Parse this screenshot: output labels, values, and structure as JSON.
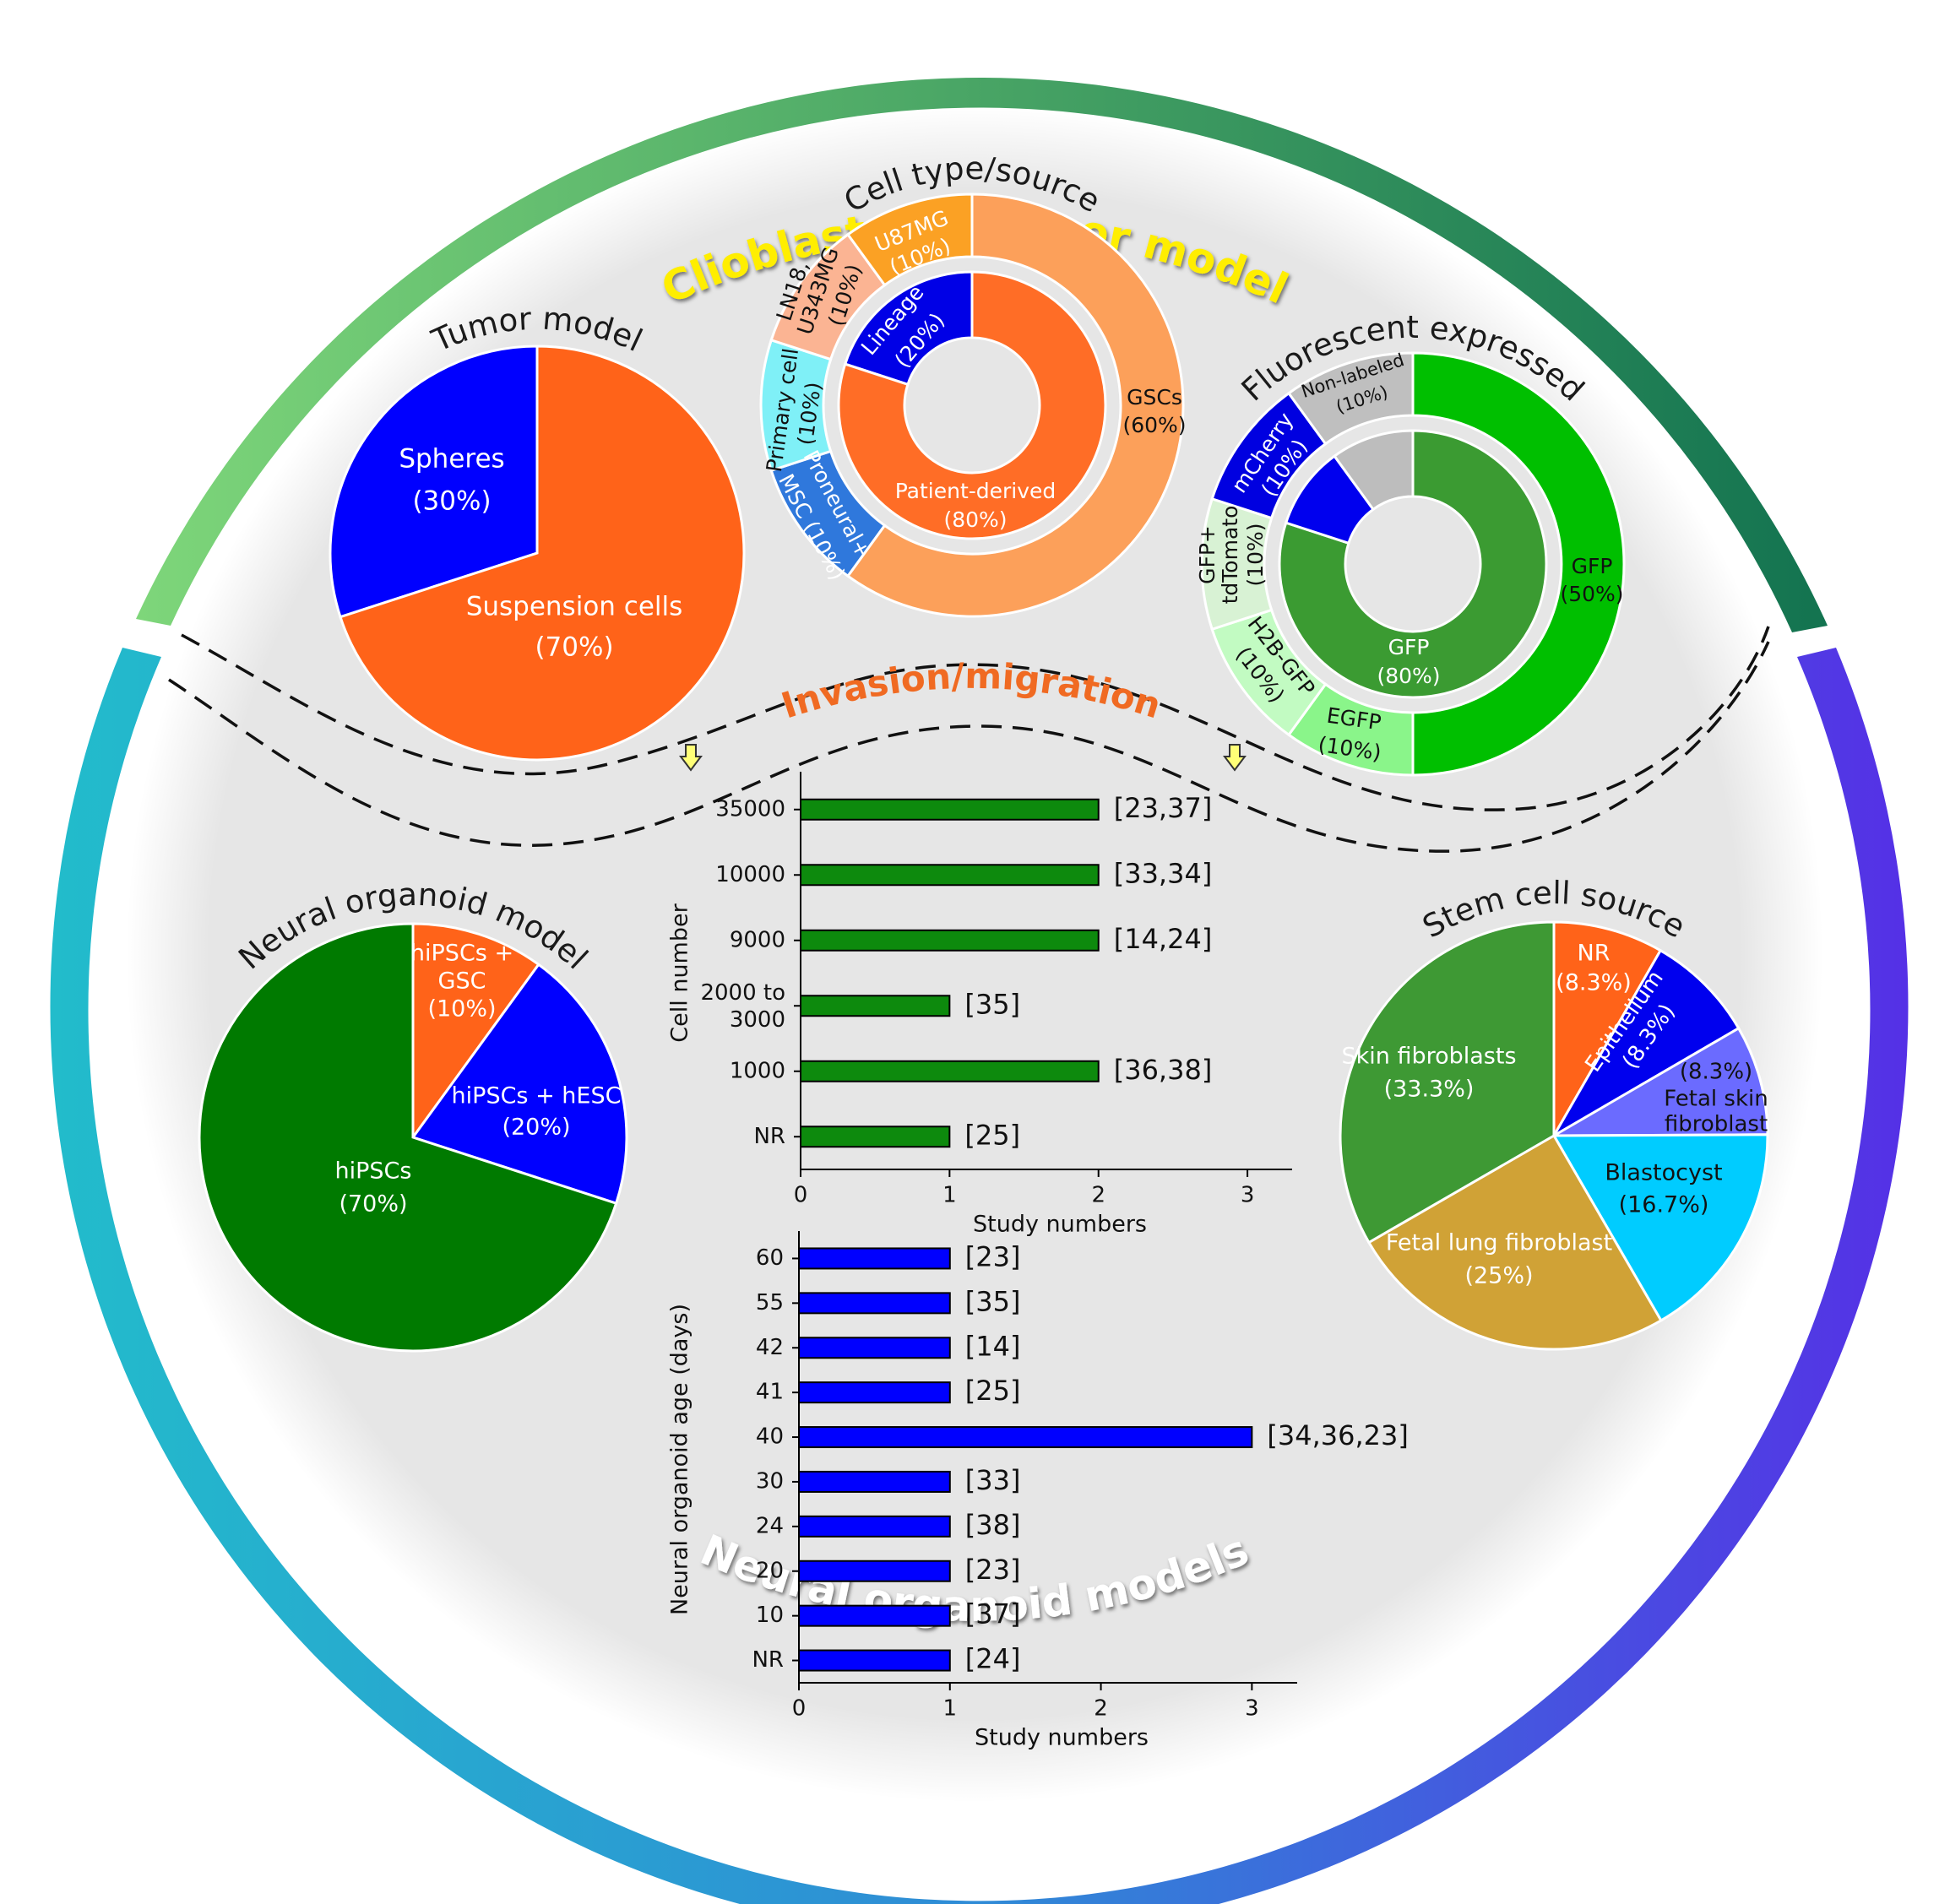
{
  "ring": {
    "top_title": "Clioblastoma tumor model",
    "bottom_title": "Neural organoid models",
    "middle_title": "Invasion/migration",
    "colors": {
      "top_start": "#7ed67a",
      "top_end": "#137350",
      "left": "#22bccb",
      "right": "#5530e6",
      "bottom_mid": "#2f8bd6",
      "top_text": "#ffee00",
      "mid_text": "#f06a22"
    }
  },
  "chart_data": [
    {
      "type": "pie",
      "title": "Tumor model",
      "slices": [
        {
          "label": "Spheres",
          "pct": "(30%)",
          "value": 30,
          "color": "#0000ff"
        },
        {
          "label": "Suspension cells",
          "pct": "(70%)",
          "value": 70,
          "color": "#ff6319"
        }
      ]
    },
    {
      "type": "pie",
      "subtype": "nested-donut",
      "title": "Cell type/source",
      "inner": [
        {
          "label": "Lineage",
          "pct": "(20%)",
          "value": 20,
          "color": "#0000e6"
        },
        {
          "label": "Patient-derived",
          "pct": "(80%)",
          "value": 80,
          "color": "#ff6d26"
        }
      ],
      "outer": [
        {
          "label": "U87MG",
          "pct": "(10%)",
          "value": 10,
          "color": "#2f78dc"
        },
        {
          "label": "LN18, U343MG",
          "pct": "(10%)",
          "value": 10,
          "color": "#7ff0f7"
        },
        {
          "label": "Primary cell",
          "pct": "(10%)",
          "value": 10,
          "color": "#fbb493"
        },
        {
          "label": "Proneural+ MSC",
          "pct": "(10%)",
          "value": 10,
          "color": "#fba124"
        },
        {
          "label": "GSCs",
          "pct": "(60%)",
          "value": 60,
          "color": "#fca05a"
        }
      ]
    },
    {
      "type": "pie",
      "subtype": "nested-donut",
      "title": "Fluorescent expressed",
      "inner": [
        {
          "label": "GFP",
          "pct": "(80%)",
          "value": 80,
          "color": "#3b9b32"
        },
        {
          "label": "",
          "pct": "",
          "value": 10,
          "color": "#0000ee"
        },
        {
          "label": "",
          "pct": "",
          "value": 10,
          "color": "#bdbdbd"
        }
      ],
      "outer": [
        {
          "label": "GFP",
          "pct": "(50%)",
          "value": 50,
          "color": "#00bf00"
        },
        {
          "label": "EGFP",
          "pct": "(10%)",
          "value": 10,
          "color": "#8af58a"
        },
        {
          "label": "H2B-GFP",
          "pct": "(10%)",
          "value": 10,
          "color": "#c2fbc2"
        },
        {
          "label": "GFP+ tdTomato",
          "pct": "(10%)",
          "value": 10,
          "color": "#d8f2d4"
        },
        {
          "label": "mCherry",
          "pct": "(10%)",
          "value": 10,
          "color": "#0000e0"
        },
        {
          "label": "Non-labeled",
          "pct": "(10%)",
          "value": 10,
          "color": "#bfbfbf"
        }
      ]
    },
    {
      "type": "pie",
      "title": "Neural organoid model",
      "slices": [
        {
          "label": "hiPSCs + GSC",
          "pct": "(10%)",
          "value": 10,
          "color": "#ff6319"
        },
        {
          "label": "hiPSCs + hESC",
          "pct": "(20%)",
          "value": 20,
          "color": "#0000ff"
        },
        {
          "label": "hiPSCs",
          "pct": "(70%)",
          "value": 70,
          "color": "#007a00"
        }
      ]
    },
    {
      "type": "pie",
      "title": "Stem cell source",
      "slices": [
        {
          "label": "NR",
          "pct": "(8.3%)",
          "value": 8.3,
          "color": "#ff6319"
        },
        {
          "label": "Epithelium",
          "pct": "(8.3%)",
          "value": 8.3,
          "color": "#0000ee"
        },
        {
          "label": "Fetal skin fibroblast",
          "pct": "(8.3%)",
          "value": 8.3,
          "color": "#6b6bff"
        },
        {
          "label": "Blastocyst",
          "pct": "(16.7%)",
          "value": 16.7,
          "color": "#00ccff"
        },
        {
          "label": "Fetal lung fibroblast",
          "pct": "(25%)",
          "value": 25,
          "color": "#d0a236"
        },
        {
          "label": "Skin fibroblasts",
          "pct": "(33.3%)",
          "value": 33.3,
          "color": "#3e9934"
        }
      ]
    },
    {
      "type": "bar",
      "orientation": "horizontal",
      "title": "",
      "ylabel": "Cell number",
      "xlabel": "Study numbers",
      "xlim": [
        0,
        3.3
      ],
      "xticks": [
        "0",
        "1",
        "2",
        "3"
      ],
      "color": "#0d8a0d",
      "categories": [
        "35000",
        "10000",
        "9000",
        "2000 to 3000",
        "1000",
        "NR"
      ],
      "values": [
        2,
        2,
        2,
        1,
        2,
        1
      ],
      "annotations": [
        "[23,37]",
        "[33,34]",
        "[14,24]",
        "[35]",
        "[36,38]",
        "[25]"
      ]
    },
    {
      "type": "bar",
      "orientation": "horizontal",
      "title": "",
      "ylabel": "Neural organoid age (days)",
      "xlabel": "Study numbers",
      "xlim": [
        0,
        3.3
      ],
      "xticks": [
        "0",
        "1",
        "2",
        "3"
      ],
      "color": "#0000ff",
      "categories": [
        "60",
        "55",
        "42",
        "41",
        "40",
        "30",
        "24",
        "20",
        "10",
        "NR"
      ],
      "values": [
        1,
        1,
        1,
        1,
        3,
        1,
        1,
        1,
        1,
        1
      ],
      "annotations": [
        "[23]",
        "[35]",
        "[14]",
        "[25]",
        "[34,36,23]",
        "[33]",
        "[38]",
        "[23]",
        "[37]",
        "[24]"
      ]
    }
  ]
}
